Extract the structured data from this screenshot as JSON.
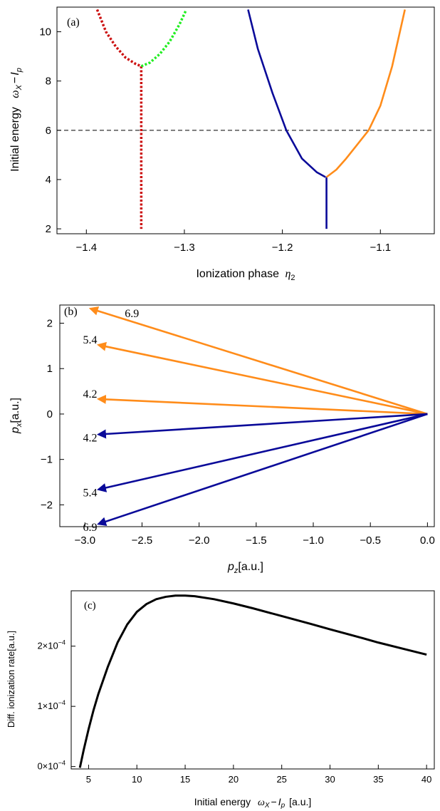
{
  "chart_data": [
    {
      "panel_label": "(a)",
      "type": "line",
      "xlabel": "Ionization phase",
      "xlabel_symbol": "η",
      "xlabel_sub": "2",
      "ylabel": "Initial energy",
      "ylabel_symbol_pre": "ω",
      "ylabel_sub1": "X",
      "ylabel_mid": "−",
      "ylabel_symbol_post": "I",
      "ylabel_sub2": "p",
      "xlim": [
        -1.43,
        -1.045
      ],
      "ylim": [
        1.8,
        11.0
      ],
      "xticks": [
        -1.4,
        -1.3,
        -1.2,
        -1.1
      ],
      "xtick_labels": [
        "−1.4",
        "−1.3",
        "−1.2",
        "−1.1"
      ],
      "yticks": [
        2,
        4,
        6,
        8,
        10
      ],
      "ytick_labels": [
        "2",
        "4",
        "6",
        "8",
        "10"
      ],
      "reference_line": {
        "y": 6,
        "style": "dashed"
      },
      "series": [
        {
          "color": "#cc1111",
          "style": "dotted",
          "x": [
            -1.389,
            -1.38,
            -1.37,
            -1.36,
            -1.35,
            -1.344
          ],
          "y": [
            10.9,
            10.0,
            9.4,
            8.95,
            8.7,
            8.6
          ]
        },
        {
          "color": "#cc1111",
          "style": "dotted",
          "x": [
            -1.344,
            -1.344
          ],
          "y": [
            8.6,
            2.0
          ]
        },
        {
          "color": "#22ee22",
          "style": "dotted",
          "x": [
            -1.344,
            -1.335,
            -1.325,
            -1.315,
            -1.305,
            -1.298
          ],
          "y": [
            8.6,
            8.75,
            9.1,
            9.6,
            10.3,
            10.9
          ]
        },
        {
          "color": "#0a0a99",
          "style": "solid",
          "x": [
            -1.235,
            -1.225,
            -1.21,
            -1.196,
            -1.18,
            -1.165,
            -1.156
          ],
          "y": [
            10.9,
            9.3,
            7.5,
            6.0,
            4.85,
            4.3,
            4.1
          ]
        },
        {
          "color": "#0a0a99",
          "style": "solid",
          "x": [
            -1.155,
            -1.155
          ],
          "y": [
            4.1,
            2.0
          ]
        },
        {
          "color": "#ff8c1a",
          "style": "solid",
          "x": [
            -1.155,
            -1.145,
            -1.135,
            -1.125,
            -1.112,
            -1.1,
            -1.088,
            -1.075
          ],
          "y": [
            4.1,
            4.4,
            4.85,
            5.35,
            6.0,
            7.0,
            8.6,
            10.9
          ]
        }
      ]
    },
    {
      "panel_label": "(b)",
      "type": "vector",
      "xlabel_symbol": "p",
      "xlabel_sub": "z",
      "xlabel_unit": "[a.u.]",
      "ylabel_symbol": "p",
      "ylabel_sub": "x",
      "ylabel_unit": "[a.u.]",
      "xlim": [
        -3.22,
        0.06
      ],
      "ylim": [
        -2.48,
        2.4
      ],
      "xticks": [
        -3.0,
        -2.5,
        -2.0,
        -1.5,
        -1.0,
        -0.5,
        0.0
      ],
      "xtick_labels": [
        "−3.0",
        "−2.5",
        "−2.0",
        "−1.5",
        "−1.0",
        "−0.5",
        "0.0"
      ],
      "yticks": [
        -2,
        -1,
        0,
        1,
        2
      ],
      "ytick_labels": [
        "−2",
        "−1",
        "0",
        "1",
        "2"
      ],
      "vectors": [
        {
          "label": "6.9",
          "color": "#ff8c1a",
          "x": -2.95,
          "y": 2.32
        },
        {
          "label": "5.4",
          "color": "#ff8c1a",
          "x": -2.88,
          "y": 1.52
        },
        {
          "label": "4.2",
          "color": "#ff8c1a",
          "x": -2.88,
          "y": 0.33
        },
        {
          "label": "4.2",
          "color": "#0a0a99",
          "x": -2.88,
          "y": -0.45
        },
        {
          "label": "5.4",
          "color": "#0a0a99",
          "x": -2.88,
          "y": -1.66
        },
        {
          "label": "6.9",
          "color": "#0a0a99",
          "x": -2.88,
          "y": -2.42
        }
      ]
    },
    {
      "panel_label": "(c)",
      "type": "line",
      "xlabel": "Initial energy",
      "xlabel_symbol_pre": "ω",
      "xlabel_sub1": "X",
      "xlabel_mid": "−",
      "xlabel_symbol_post": "I",
      "xlabel_sub2": "p",
      "xlabel_unit": "[a.u.]",
      "ylabel": "Diff. ionization rate[a.u.]",
      "xlim": [
        3.2,
        40.8
      ],
      "ylim": [
        -4e-06,
        0.000292
      ],
      "xticks": [
        5,
        10,
        15,
        20,
        25,
        30,
        35,
        40
      ],
      "xtick_labels": [
        "5",
        "10",
        "15",
        "20",
        "25",
        "30",
        "35",
        "40"
      ],
      "yticks": [
        0,
        0.0001,
        0.0002
      ],
      "ytick_labels": [
        {
          "mant": "0×10",
          "exp": "−4"
        },
        {
          "mant": "1×10",
          "exp": "−4"
        },
        {
          "mant": "2×10",
          "exp": "−4"
        }
      ],
      "series": [
        {
          "color": "#000000",
          "x": [
            4.1,
            4.5,
            5,
            5.5,
            6,
            7,
            8,
            9,
            10,
            11,
            12,
            13,
            14,
            15,
            16,
            18,
            20,
            22,
            25,
            28,
            30,
            33,
            35,
            38,
            40
          ],
          "y": [
            -2e-06,
            2.8e-05,
            6.2e-05,
            9.3e-05,
            0.00012,
            0.000166,
            0.000206,
            0.000236,
            0.000257,
            0.00027,
            0.000278,
            0.000282,
            0.000284,
            0.000284,
            0.000283,
            0.000278,
            0.000271,
            0.000263,
            0.00025,
            0.000237,
            0.000228,
            0.000215,
            0.000206,
            0.000194,
            0.000186
          ]
        }
      ]
    }
  ]
}
